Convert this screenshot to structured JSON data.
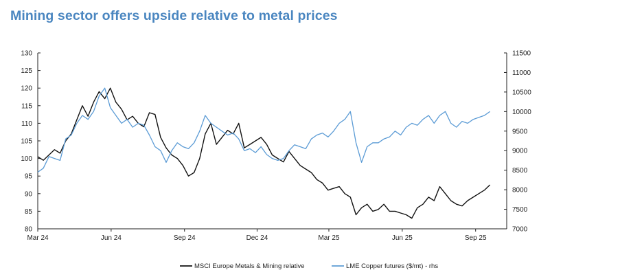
{
  "title": "Mining sector offers upside relative to metal prices",
  "colors": {
    "title": "#4a86c0",
    "msci": "#111111",
    "copper": "#5b9bd5"
  },
  "chart_data": {
    "type": "line",
    "title": "Mining sector offers upside relative to metal prices",
    "x_ticks": [
      "Mar 24",
      "Jun 24",
      "Sep 24",
      "Dec 24",
      "Mar 25",
      "Jun 25",
      "Sep 25"
    ],
    "y_left": {
      "range": [
        80,
        130
      ],
      "ticks": [
        80,
        85,
        90,
        95,
        100,
        105,
        110,
        115,
        120,
        125,
        130
      ]
    },
    "y_right": {
      "range": [
        7000,
        11500
      ],
      "ticks": [
        7000,
        7500,
        8000,
        8500,
        9000,
        9500,
        10000,
        10500,
        11000,
        11500
      ]
    },
    "grid": false,
    "legend_position": "bottom",
    "series": [
      {
        "name": "MSCI Europe Metals & Mining relative",
        "axis": "left",
        "color": "#111111",
        "points": [
          [
            "2024-03-01",
            100.5
          ],
          [
            "2024-03-08",
            99.5
          ],
          [
            "2024-03-15",
            101
          ],
          [
            "2024-03-22",
            102.5
          ],
          [
            "2024-03-29",
            101.5
          ],
          [
            "2024-04-05",
            105
          ],
          [
            "2024-04-12",
            107
          ],
          [
            "2024-04-19",
            111
          ],
          [
            "2024-04-26",
            115
          ],
          [
            "2024-05-03",
            112
          ],
          [
            "2024-05-10",
            116
          ],
          [
            "2024-05-17",
            119
          ],
          [
            "2024-05-24",
            117
          ],
          [
            "2024-05-31",
            120
          ],
          [
            "2024-06-07",
            116
          ],
          [
            "2024-06-14",
            114
          ],
          [
            "2024-06-21",
            111
          ],
          [
            "2024-06-28",
            112
          ],
          [
            "2024-07-05",
            110
          ],
          [
            "2024-07-12",
            109
          ],
          [
            "2024-07-19",
            113
          ],
          [
            "2024-07-26",
            112.5
          ],
          [
            "2024-08-02",
            106
          ],
          [
            "2024-08-09",
            103
          ],
          [
            "2024-08-16",
            101
          ],
          [
            "2024-08-23",
            100
          ],
          [
            "2024-08-30",
            98
          ],
          [
            "2024-09-06",
            95
          ],
          [
            "2024-09-13",
            96
          ],
          [
            "2024-09-20",
            100
          ],
          [
            "2024-09-27",
            107
          ],
          [
            "2024-10-04",
            110
          ],
          [
            "2024-10-11",
            104
          ],
          [
            "2024-10-18",
            106
          ],
          [
            "2024-10-25",
            108
          ],
          [
            "2024-11-01",
            107
          ],
          [
            "2024-11-08",
            110
          ],
          [
            "2024-11-15",
            103
          ],
          [
            "2024-11-22",
            104
          ],
          [
            "2024-11-29",
            105
          ],
          [
            "2024-12-06",
            106
          ],
          [
            "2024-12-13",
            104
          ],
          [
            "2024-12-20",
            101
          ],
          [
            "2024-12-27",
            100
          ],
          [
            "2025-01-03",
            99
          ],
          [
            "2025-01-10",
            102
          ],
          [
            "2025-01-17",
            100
          ],
          [
            "2025-01-24",
            98
          ],
          [
            "2025-01-31",
            97
          ],
          [
            "2025-02-07",
            96
          ],
          [
            "2025-02-14",
            94
          ],
          [
            "2025-02-21",
            93
          ],
          [
            "2025-02-28",
            91
          ],
          [
            "2025-03-07",
            91.5
          ],
          [
            "2025-03-14",
            92
          ],
          [
            "2025-03-21",
            90
          ],
          [
            "2025-03-28",
            89
          ],
          [
            "2025-04-04",
            84
          ],
          [
            "2025-04-11",
            86
          ],
          [
            "2025-04-18",
            87
          ],
          [
            "2025-04-25",
            85
          ],
          [
            "2025-05-02",
            85.5
          ],
          [
            "2025-05-09",
            87
          ],
          [
            "2025-05-16",
            85
          ],
          [
            "2025-05-23",
            85
          ],
          [
            "2025-05-30",
            84.5
          ],
          [
            "2025-06-06",
            84
          ],
          [
            "2025-06-13",
            83
          ],
          [
            "2025-06-20",
            86
          ],
          [
            "2025-06-27",
            87
          ],
          [
            "2025-07-04",
            89
          ],
          [
            "2025-07-11",
            88
          ],
          [
            "2025-07-18",
            92
          ],
          [
            "2025-07-25",
            90
          ],
          [
            "2025-08-01",
            88
          ],
          [
            "2025-08-08",
            87
          ],
          [
            "2025-08-15",
            86.5
          ],
          [
            "2025-08-22",
            88
          ],
          [
            "2025-08-29",
            89
          ],
          [
            "2025-09-05",
            90
          ],
          [
            "2025-09-12",
            91
          ],
          [
            "2025-09-19",
            92.5
          ]
        ]
      },
      {
        "name": "LME Copper futures ($/mt) - rhs",
        "axis": "right",
        "color": "#5b9bd5",
        "points": [
          [
            "2024-03-01",
            8450
          ],
          [
            "2024-03-08",
            8550
          ],
          [
            "2024-03-15",
            8850
          ],
          [
            "2024-03-22",
            8800
          ],
          [
            "2024-03-29",
            8750
          ],
          [
            "2024-04-05",
            9300
          ],
          [
            "2024-04-12",
            9400
          ],
          [
            "2024-04-19",
            9700
          ],
          [
            "2024-04-26",
            9900
          ],
          [
            "2024-05-03",
            9800
          ],
          [
            "2024-05-10",
            10000
          ],
          [
            "2024-05-17",
            10400
          ],
          [
            "2024-05-24",
            10600
          ],
          [
            "2024-05-31",
            10100
          ],
          [
            "2024-06-07",
            9900
          ],
          [
            "2024-06-14",
            9700
          ],
          [
            "2024-06-21",
            9800
          ],
          [
            "2024-06-28",
            9600
          ],
          [
            "2024-07-05",
            9700
          ],
          [
            "2024-07-12",
            9650
          ],
          [
            "2024-07-19",
            9400
          ],
          [
            "2024-07-26",
            9100
          ],
          [
            "2024-08-02",
            9000
          ],
          [
            "2024-08-09",
            8700
          ],
          [
            "2024-08-16",
            9000
          ],
          [
            "2024-08-23",
            9200
          ],
          [
            "2024-08-30",
            9100
          ],
          [
            "2024-09-06",
            9050
          ],
          [
            "2024-09-13",
            9200
          ],
          [
            "2024-09-20",
            9500
          ],
          [
            "2024-09-27",
            9900
          ],
          [
            "2024-10-04",
            9700
          ],
          [
            "2024-10-11",
            9600
          ],
          [
            "2024-10-18",
            9500
          ],
          [
            "2024-10-25",
            9400
          ],
          [
            "2024-11-01",
            9450
          ],
          [
            "2024-11-08",
            9300
          ],
          [
            "2024-11-15",
            9000
          ],
          [
            "2024-11-22",
            9050
          ],
          [
            "2024-11-29",
            8950
          ],
          [
            "2024-12-06",
            9100
          ],
          [
            "2024-12-13",
            8900
          ],
          [
            "2024-12-20",
            8800
          ],
          [
            "2024-12-27",
            8750
          ],
          [
            "2025-01-03",
            8800
          ],
          [
            "2025-01-10",
            9000
          ],
          [
            "2025-01-17",
            9150
          ],
          [
            "2025-01-24",
            9100
          ],
          [
            "2025-01-31",
            9050
          ],
          [
            "2025-02-07",
            9300
          ],
          [
            "2025-02-14",
            9400
          ],
          [
            "2025-02-21",
            9450
          ],
          [
            "2025-02-28",
            9350
          ],
          [
            "2025-03-07",
            9500
          ],
          [
            "2025-03-14",
            9700
          ],
          [
            "2025-03-21",
            9800
          ],
          [
            "2025-03-28",
            10000
          ],
          [
            "2025-04-04",
            9200
          ],
          [
            "2025-04-11",
            8700
          ],
          [
            "2025-04-18",
            9100
          ],
          [
            "2025-04-25",
            9200
          ],
          [
            "2025-05-02",
            9200
          ],
          [
            "2025-05-09",
            9300
          ],
          [
            "2025-05-16",
            9350
          ],
          [
            "2025-05-23",
            9500
          ],
          [
            "2025-05-30",
            9400
          ],
          [
            "2025-06-06",
            9600
          ],
          [
            "2025-06-13",
            9700
          ],
          [
            "2025-06-20",
            9650
          ],
          [
            "2025-06-27",
            9800
          ],
          [
            "2025-07-04",
            9900
          ],
          [
            "2025-07-11",
            9700
          ],
          [
            "2025-07-18",
            9900
          ],
          [
            "2025-07-25",
            10000
          ],
          [
            "2025-08-01",
            9700
          ],
          [
            "2025-08-08",
            9600
          ],
          [
            "2025-08-15",
            9750
          ],
          [
            "2025-08-22",
            9700
          ],
          [
            "2025-08-29",
            9800
          ],
          [
            "2025-09-05",
            9850
          ],
          [
            "2025-09-12",
            9900
          ],
          [
            "2025-09-19",
            10000
          ]
        ]
      }
    ]
  }
}
